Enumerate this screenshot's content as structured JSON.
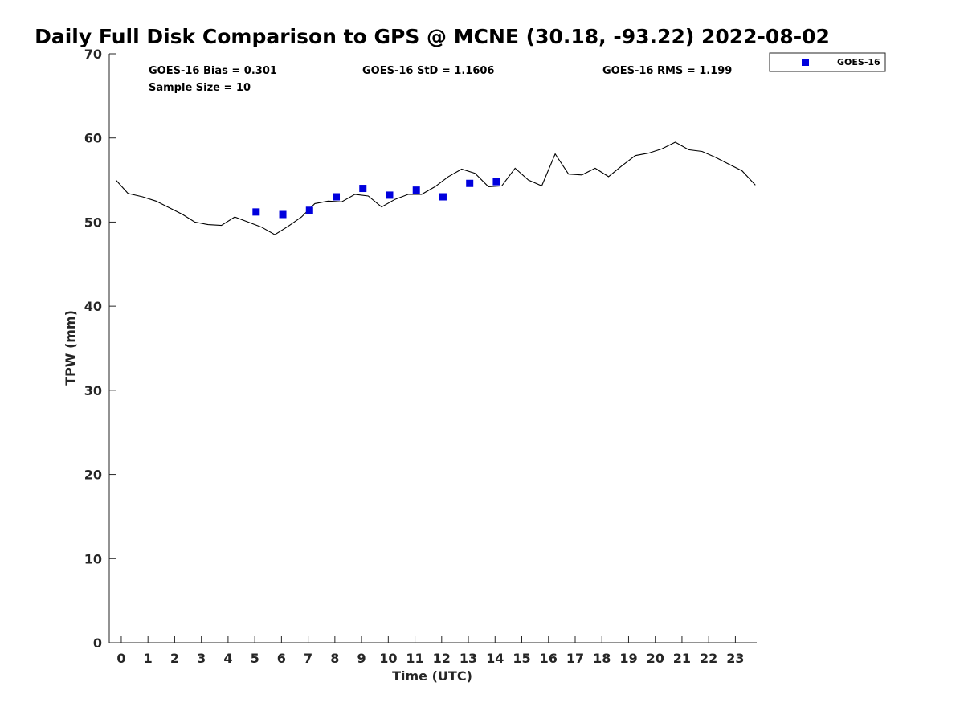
{
  "chart_data": {
    "type": "scatter",
    "title": "Daily Full Disk Comparison to GPS @ MCNE (30.18, -93.22) 2022-08-02",
    "xlabel": "Time (UTC)",
    "ylabel": "TPW (mm)",
    "xlim": [
      -0.45,
      23.8
    ],
    "ylim": [
      0,
      70
    ],
    "x_ticks": [
      0,
      1,
      2,
      3,
      4,
      5,
      6,
      7,
      8,
      9,
      10,
      11,
      12,
      13,
      14,
      15,
      16,
      17,
      18,
      19,
      20,
      21,
      22,
      23
    ],
    "y_ticks": [
      0,
      10,
      20,
      30,
      40,
      50,
      60,
      70
    ],
    "grid": false,
    "legend_position": "outside-top-right",
    "annotations": {
      "bias": "GOES-16 Bias = 0.301",
      "sample_size": "Sample Size = 10",
      "std": "GOES-16 StD = 1.1606",
      "rms": "GOES-16 RMS = 1.199"
    },
    "series": [
      {
        "name": "GOES-16",
        "kind": "scatter",
        "marker": "square",
        "color": "#0000dd",
        "x": [
          5.05,
          6.05,
          7.05,
          8.05,
          9.05,
          10.05,
          11.05,
          12.05,
          13.05,
          14.05
        ],
        "y": [
          51.2,
          50.9,
          51.4,
          53.0,
          54.0,
          53.2,
          53.8,
          53.0,
          54.6,
          54.8
        ]
      },
      {
        "kind": "line",
        "color": "#000000",
        "x": [
          -0.2,
          0.25,
          0.8,
          1.3,
          1.8,
          2.3,
          2.75,
          3.25,
          3.75,
          4.25,
          4.75,
          5.25,
          5.75,
          6.25,
          6.75,
          7.25,
          7.75,
          8.25,
          8.75,
          9.25,
          9.75,
          10.25,
          10.75,
          11.25,
          11.75,
          12.25,
          12.75,
          13.25,
          13.75,
          14.25,
          14.75,
          15.25,
          15.75,
          16.25,
          16.75,
          17.25,
          17.75,
          18.25,
          18.75,
          19.25,
          19.75,
          20.25,
          20.75,
          21.25,
          21.75,
          22.25,
          22.75,
          23.25,
          23.75
        ],
        "y": [
          55.0,
          53.4,
          53.0,
          52.5,
          51.7,
          50.9,
          50.0,
          49.7,
          49.6,
          50.6,
          50.0,
          49.4,
          48.5,
          49.5,
          50.6,
          52.2,
          52.5,
          52.4,
          53.3,
          53.1,
          51.8,
          52.7,
          53.3,
          53.3,
          54.2,
          55.4,
          56.3,
          55.8,
          54.2,
          54.3,
          56.4,
          55.0,
          54.3,
          58.1,
          55.7,
          55.6,
          56.4,
          55.4,
          56.7,
          57.9,
          58.2,
          58.7,
          59.5,
          58.6,
          58.4,
          57.7,
          56.9,
          56.1,
          54.4
        ]
      }
    ]
  }
}
